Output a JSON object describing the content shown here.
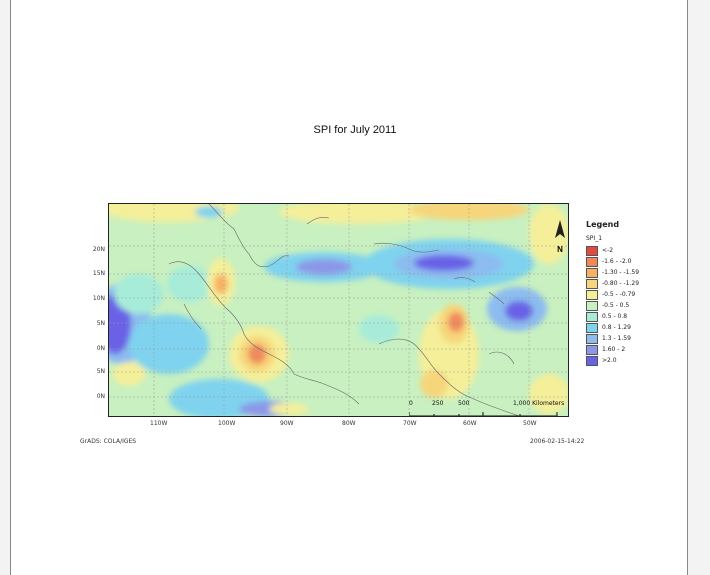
{
  "map": {
    "title": "SPI  for July 2011",
    "lat_ticks": [
      "",
      "20N",
      "15N",
      "10N",
      "5N",
      "0N",
      "5N",
      "0N"
    ],
    "lon_ticks": [
      "110W",
      "100W",
      "90W",
      "80W",
      "70W",
      "60W",
      "50W"
    ],
    "scale": {
      "labels": [
        "0",
        "250",
        "500",
        "1,000 Kilometers"
      ]
    },
    "north_arrow": "N",
    "footer_left": "GrADS: COLA/IGES",
    "footer_right": "2006-02-15-14:22",
    "colors": {
      "ocean_base": "#c8f0c0",
      "land_lines": "#777777"
    }
  },
  "legend": {
    "title": "Legend",
    "field": "SPI_1",
    "classes": [
      {
        "label": "<-2",
        "color": "#e24a3f"
      },
      {
        "label": "-1.6 - -2.0",
        "color": "#f08a5b"
      },
      {
        "label": "-1.30 - -1.59",
        "color": "#f6b262"
      },
      {
        "label": "-0.80 - -1.29",
        "color": "#f7d57a"
      },
      {
        "label": "-0.5 - -0.79",
        "color": "#f5ef9a"
      },
      {
        "label": "-0.5 - 0.5",
        "color": "#c8f0c0"
      },
      {
        "label": "0.5 - 0.8",
        "color": "#a6ecd9"
      },
      {
        "label": "0.8 - 1.29",
        "color": "#7fd3ee"
      },
      {
        "label": "1.3 - 1.59",
        "color": "#8cbcf0"
      },
      {
        "label": "1.60 - 2",
        "color": "#8b98e8"
      },
      {
        "label": ">2.0",
        "color": "#6a62e6"
      }
    ]
  }
}
